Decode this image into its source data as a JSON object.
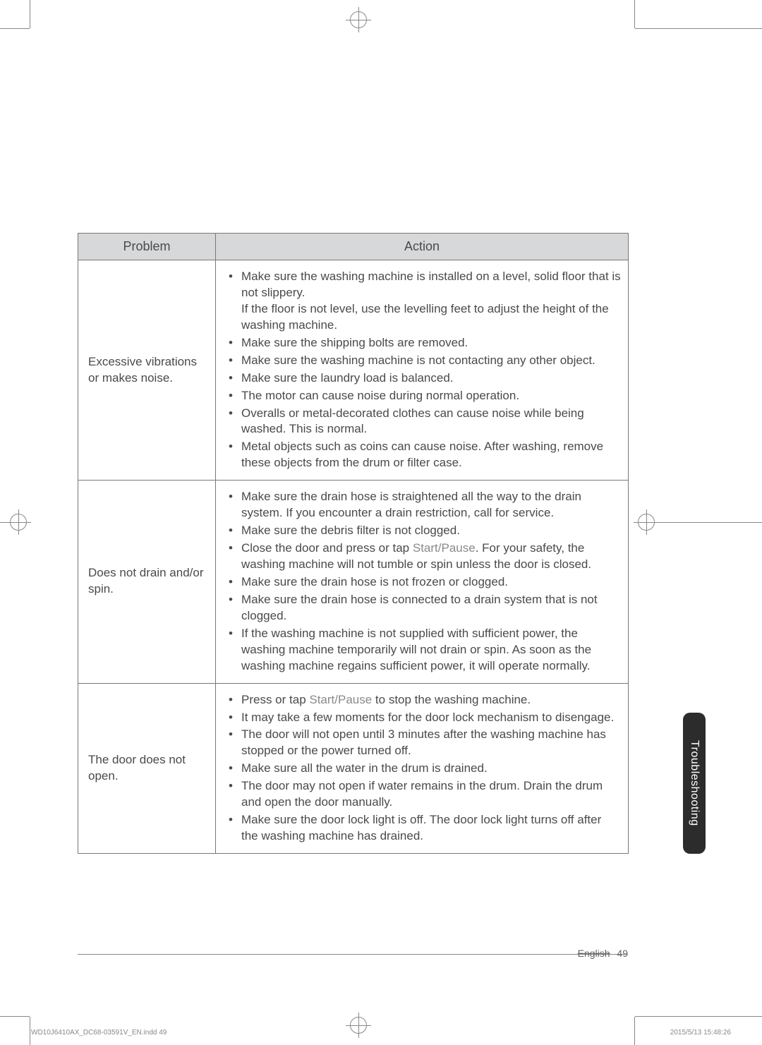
{
  "table": {
    "headers": {
      "problem": "Problem",
      "action": "Action"
    },
    "rows": [
      {
        "problem": "Excessive vibrations or makes noise.",
        "actions": [
          "Make sure the washing machine is installed on a level, solid floor that is not slippery.\nIf the floor is not level, use the levelling feet to adjust the height of the washing machine.",
          "Make sure the shipping bolts are removed.",
          "Make sure the washing machine is not contacting any other object.",
          "Make sure the laundry load is balanced.",
          "The motor can cause noise during normal operation.",
          "Overalls or metal-decorated clothes can cause noise while being washed. This is normal.",
          "Metal objects such as coins can cause noise. After washing, remove these objects from the drum or filter case."
        ]
      },
      {
        "problem": "Does not drain and/or spin.",
        "actions": [
          "Make sure the drain hose is straightened all the way to the drain system. If you encounter a drain restriction, call for service.",
          "Make sure the debris filter is not clogged.",
          {
            "pre": "Close the door and press or tap ",
            "em": "Start/Pause",
            "post": ". For your safety, the washing machine will not tumble or spin unless the door is closed."
          },
          "Make sure the drain hose is not frozen or clogged.",
          "Make sure the drain hose is connected to a drain system that is not clogged.",
          "If the washing machine is not supplied with sufficient power, the washing machine temporarily will not drain or spin. As soon as the washing machine regains sufficient power, it will operate normally."
        ]
      },
      {
        "problem": "The door does not open.",
        "actions": [
          {
            "pre": "Press or tap ",
            "em": "Start/Pause",
            "post": " to stop the washing machine."
          },
          "It may take a few moments for the door lock mechanism to disengage.",
          "The door will not open until 3 minutes after the washing machine has stopped or the power turned off.",
          "Make sure all the water in the drum is drained.",
          "The door may not open if water remains in the drum. Drain the drum and open the door manually.",
          "Make sure the door lock light is off. The door lock light turns off after the washing machine has drained."
        ]
      }
    ]
  },
  "sideTab": "Troubleshooting",
  "footer": {
    "lang": "English",
    "page": "49"
  },
  "imprint": {
    "left": "WD10J6410AX_DC68-03591V_EN.indd   49",
    "right": "2015/5/13   15:48:26"
  }
}
